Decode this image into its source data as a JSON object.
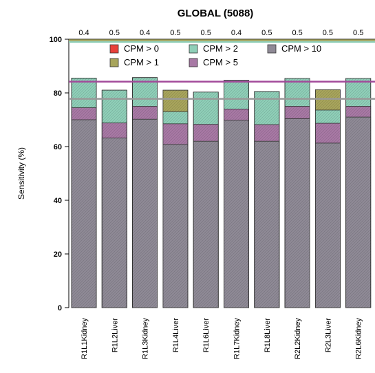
{
  "chart_data": {
    "type": "bar",
    "title": "GLOBAL (5088)",
    "ylabel": "Sensitivity (%)",
    "xlabel": "",
    "ylim": [
      0,
      100
    ],
    "yticks": [
      0,
      20,
      40,
      60,
      80,
      100
    ],
    "categories": [
      "R1L1Kidney",
      "R1L2Liver",
      "R1L3Kidney",
      "R1L4Liver",
      "R1L6Liver",
      "R1L7Kidney",
      "R1L8Liver",
      "R2L2Kidney",
      "R2L3Liver",
      "R2L6Kidney"
    ],
    "top_labels": [
      "0.4",
      "0.5",
      "0.4",
      "0.5",
      "0.5",
      "0.4",
      "0.5",
      "0.5",
      "0.5",
      "0.5"
    ],
    "series": [
      {
        "name": "CPM > 0",
        "color": "#e8413a",
        "values": [
          85.5,
          81.0,
          85.7,
          81.0,
          80.3,
          84.7,
          80.5,
          85.4,
          81.2,
          85.4
        ]
      },
      {
        "name": "CPM > 1",
        "color": "#a8a55c",
        "values": [
          85.5,
          81.0,
          85.7,
          81.0,
          80.3,
          84.7,
          80.5,
          85.4,
          81.2,
          85.4
        ]
      },
      {
        "name": "CPM > 2",
        "color": "#8fcfb8",
        "values": [
          85.5,
          81.0,
          85.7,
          73.0,
          80.3,
          84.7,
          80.5,
          85.4,
          73.6,
          85.4
        ]
      },
      {
        "name": "CPM > 5",
        "color": "#a879a5",
        "values": [
          74.5,
          68.8,
          75.0,
          68.5,
          68.3,
          74.0,
          68.2,
          75.0,
          68.7,
          75.0
        ]
      },
      {
        "name": "CPM > 10",
        "color": "#8f8a96",
        "values": [
          70.0,
          63.2,
          70.2,
          60.8,
          62.0,
          69.8,
          62.0,
          70.4,
          61.3,
          71.0
        ]
      }
    ],
    "reference_lines": [
      {
        "series": "CPM > 0",
        "value": 99.3,
        "color": "#e8413a"
      },
      {
        "series": "CPM > 1",
        "value": 99.6,
        "color": "#a8a55c"
      },
      {
        "series": "CPM > 2",
        "value": 99.0,
        "color": "#8fcfb8"
      },
      {
        "series": "CPM > 5",
        "value": 84.2,
        "color": "#a24a9a"
      },
      {
        "series": "CPM > 10",
        "value": 77.8,
        "color": "#999999"
      }
    ],
    "legend_placement": "top",
    "grid": false
  }
}
